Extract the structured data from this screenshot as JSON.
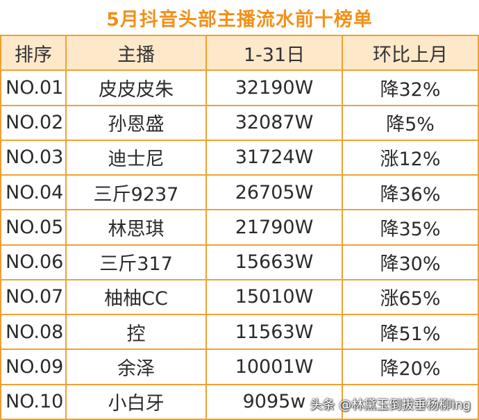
{
  "title": "5月抖音头部主播流水前十榜单",
  "header": [
    "排序",
    "主播",
    "1-31日",
    "环比上月"
  ],
  "rows": [
    {
      "rank": "NO.01",
      "name": "皮皮皮朱",
      "revenue": "32190W",
      "change": "降32%"
    },
    {
      "rank": "NO.02",
      "name": "孙恩盛",
      "revenue": "32087W",
      "change": "降5%"
    },
    {
      "rank": "NO.03",
      "name": "迪士尼",
      "revenue": "31724W",
      "change": "涨12%"
    },
    {
      "rank": "NO.04",
      "name": "三斤9237",
      "revenue": "26705W",
      "change": "降36%"
    },
    {
      "rank": "NO.05",
      "name": "林思琪",
      "revenue": "21790W",
      "change": "降35%"
    },
    {
      "rank": "NO.06",
      "name": "三斤317",
      "revenue": "15663W",
      "change": "降30%"
    },
    {
      "rank": "NO.07",
      "name": "柚柚CC",
      "revenue": "15010W",
      "change": "涨65%"
    },
    {
      "rank": "NO.08",
      "name": "控",
      "revenue": "11563W",
      "change": "降51%"
    },
    {
      "rank": "NO.09",
      "name": "余泽",
      "revenue": "10001W",
      "change": "降20%"
    },
    {
      "rank": "NO.10",
      "name": "小白牙",
      "revenue": "9095w",
      "change": ""
    }
  ],
  "watermark": "头条 @林黛玉倒拔垂杨柳ing",
  "colors": {
    "title": "#f39019",
    "border": "#f0a030",
    "header_bg": "#fde8c9"
  }
}
